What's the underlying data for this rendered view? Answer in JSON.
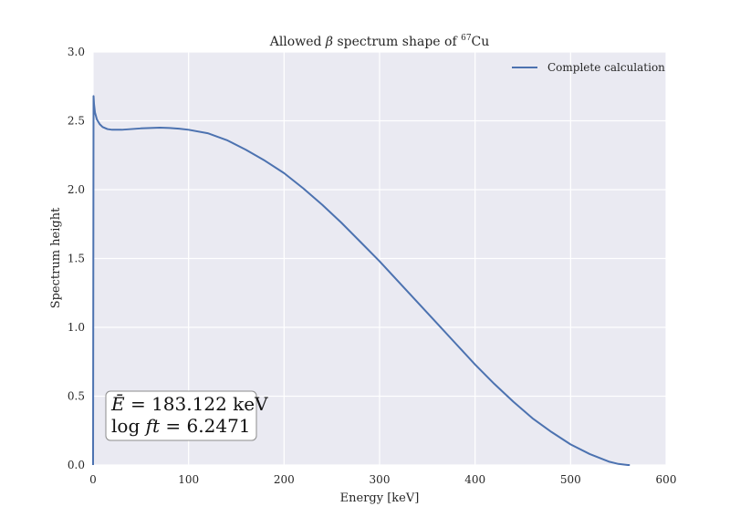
{
  "chart_data": {
    "type": "line",
    "title_parts": {
      "before": "Allowed ",
      "symbol": "β",
      "middle": " spectrum shape of ",
      "superscript": "67",
      "after": "Cu"
    },
    "xlabel": "Energy [keV]",
    "ylabel": "Spectrum height",
    "xlim": [
      0,
      600
    ],
    "ylim": [
      0,
      3.0
    ],
    "x_ticks": [
      0,
      100,
      200,
      300,
      400,
      500,
      600
    ],
    "x_tick_labels": [
      "0",
      "100",
      "200",
      "300",
      "400",
      "500",
      "600"
    ],
    "y_ticks": [
      0,
      0.5,
      1.0,
      1.5,
      2.0,
      2.5,
      3.0
    ],
    "y_tick_labels": [
      "0.0",
      "0.5",
      "1.0",
      "1.5",
      "2.0",
      "2.5",
      "3.0"
    ],
    "grid": true,
    "legend_position": "top-right",
    "series": [
      {
        "name": "Complete calculation",
        "color": "#4c72b0",
        "x": [
          0,
          0.5,
          1,
          2,
          4,
          7,
          10,
          15,
          20,
          30,
          40,
          50,
          60,
          70,
          80,
          90,
          100,
          120,
          140,
          160,
          180,
          200,
          220,
          240,
          260,
          280,
          300,
          320,
          340,
          360,
          380,
          400,
          420,
          440,
          460,
          480,
          500,
          520,
          540,
          550,
          560,
          562
        ],
        "y": [
          0,
          2.68,
          2.62,
          2.56,
          2.51,
          2.475,
          2.455,
          2.44,
          2.435,
          2.435,
          2.44,
          2.445,
          2.448,
          2.45,
          2.448,
          2.443,
          2.435,
          2.41,
          2.36,
          2.29,
          2.21,
          2.12,
          2.01,
          1.89,
          1.76,
          1.62,
          1.48,
          1.33,
          1.18,
          1.03,
          0.88,
          0.73,
          0.59,
          0.46,
          0.34,
          0.24,
          0.15,
          0.08,
          0.025,
          0.008,
          0.0,
          0.0
        ]
      }
    ],
    "annotation": {
      "line1_symbol": "Ē",
      "line1_rest": " = 183.122 keV",
      "line2_prefix": "log ",
      "line2_symbol": "ft",
      "line2_rest": " = 6.2471"
    }
  }
}
